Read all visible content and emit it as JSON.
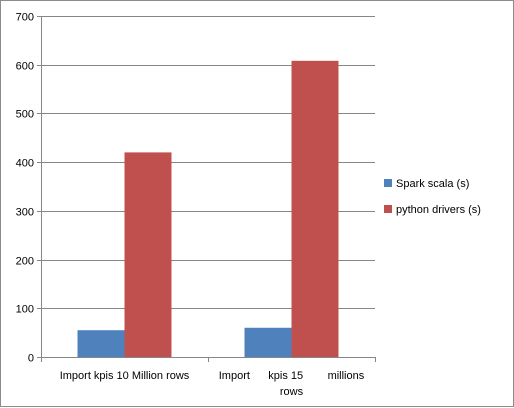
{
  "chart_data": {
    "type": "bar",
    "title": "",
    "xlabel": "",
    "ylabel": "",
    "ylim": [
      0,
      700
    ],
    "yticks": [
      0,
      100,
      200,
      300,
      400,
      500,
      600,
      700
    ],
    "grid": true,
    "legend_position": "right",
    "categories": [
      {
        "lines": [
          "Import kpis 10 Million rows"
        ]
      },
      {
        "lines": [
          "Import      kpis 15        millions",
          "rows"
        ]
      }
    ],
    "series": [
      {
        "name": "Spark scala (s)",
        "color": "#4f81bd",
        "values": [
          55,
          60
        ]
      },
      {
        "name": "python drivers (s)",
        "color": "#c0504d",
        "values": [
          420,
          608
        ]
      }
    ]
  }
}
